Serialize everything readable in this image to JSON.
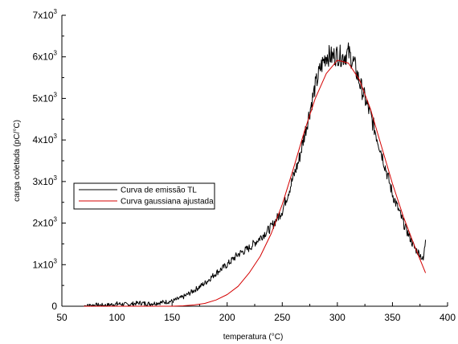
{
  "chart_data": {
    "type": "line",
    "title": "",
    "xlabel": "temperatura (°C)",
    "ylabel": "carga coletada (pC/°C)",
    "xlim": [
      50,
      400
    ],
    "ylim": [
      0,
      7000
    ],
    "x_ticks": [
      {
        "value": 50,
        "label": "50"
      },
      {
        "value": 100,
        "label": "100"
      },
      {
        "value": 150,
        "label": "150"
      },
      {
        "value": 200,
        "label": "200"
      },
      {
        "value": 250,
        "label": "250"
      },
      {
        "value": 300,
        "label": "300"
      },
      {
        "value": 350,
        "label": "350"
      },
      {
        "value": 400,
        "label": "400"
      }
    ],
    "y_ticks": [
      {
        "value": 0,
        "base": "0",
        "exp": ""
      },
      {
        "value": 1000,
        "base": "1x10",
        "exp": "3"
      },
      {
        "value": 2000,
        "base": "2x10",
        "exp": "3"
      },
      {
        "value": 3000,
        "base": "3x10",
        "exp": "3"
      },
      {
        "value": 4000,
        "base": "4x10",
        "exp": "3"
      },
      {
        "value": 5000,
        "base": "5x10",
        "exp": "3"
      },
      {
        "value": 6000,
        "base": "6x10",
        "exp": "3"
      },
      {
        "value": 7000,
        "base": "7x10",
        "exp": "3"
      }
    ],
    "grid": false,
    "legend_position": "left",
    "series": [
      {
        "name": "Curva de emissão TL",
        "color": "#000000",
        "x": [
          70,
          80,
          90,
          100,
          110,
          120,
          130,
          140,
          150,
          160,
          170,
          180,
          190,
          200,
          210,
          220,
          230,
          240,
          250,
          255,
          260,
          265,
          270,
          275,
          280,
          285,
          290,
          295,
          300,
          305,
          310,
          315,
          320,
          325,
          330,
          335,
          340,
          345,
          350,
          355,
          360,
          365,
          370,
          375,
          378,
          380
        ],
        "y": [
          0,
          30,
          20,
          60,
          40,
          80,
          60,
          90,
          120,
          220,
          380,
          560,
          800,
          1000,
          1250,
          1400,
          1650,
          1900,
          2300,
          2700,
          3100,
          3500,
          4100,
          4700,
          5300,
          5750,
          6050,
          6000,
          6050,
          6000,
          6100,
          5850,
          5400,
          5000,
          4600,
          4150,
          3700,
          3200,
          2700,
          2350,
          2000,
          1700,
          1400,
          1250,
          1100,
          1600
        ]
      },
      {
        "name": "Curva gaussiana ajustada",
        "color": "#d40000",
        "x": [
          70,
          100,
          130,
          150,
          160,
          170,
          180,
          190,
          200,
          210,
          220,
          230,
          240,
          250,
          260,
          270,
          280,
          290,
          300,
          310,
          320,
          330,
          340,
          350,
          360,
          370,
          380
        ],
        "y": [
          0,
          0,
          0,
          0,
          10,
          30,
          70,
          150,
          280,
          480,
          800,
          1200,
          1750,
          2450,
          3300,
          4200,
          5000,
          5600,
          5920,
          5850,
          5450,
          4750,
          3850,
          2950,
          2150,
          1450,
          800
        ]
      }
    ]
  }
}
